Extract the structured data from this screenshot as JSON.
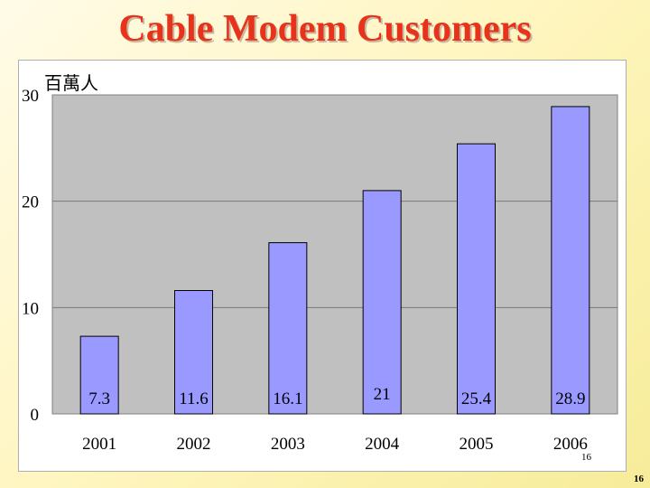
{
  "slide": {
    "title": "Cable Modem Customers",
    "page_inner": "16",
    "page_number": "16"
  },
  "colors": {
    "title": "#e8331c",
    "bar_fill": "#9999ff",
    "plot_bg": "#c0c0c0"
  },
  "chart_data": {
    "type": "bar",
    "title": "Cable Modem Customers",
    "ylabel": "百萬人",
    "xlabel": "",
    "categories": [
      "2001",
      "2002",
      "2003",
      "2004",
      "2005",
      "2006"
    ],
    "values": [
      7.3,
      11.6,
      16.1,
      21,
      25.4,
      28.9
    ],
    "value_labels": [
      "7.3",
      "11.6",
      "16.1",
      "21",
      "25.4",
      "28.9"
    ],
    "ylim": [
      0,
      30
    ],
    "yticks": [
      0,
      10,
      20,
      30
    ],
    "ytick_labels": [
      "0",
      "10",
      "20",
      "30"
    ],
    "grid": true,
    "legend": "none"
  }
}
